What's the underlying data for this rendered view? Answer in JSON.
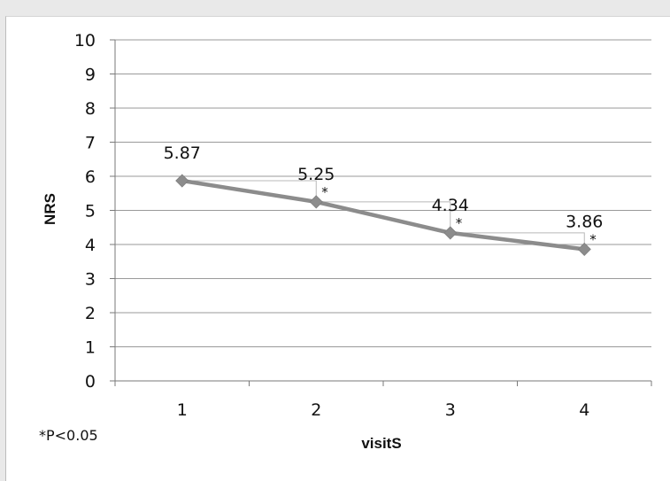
{
  "chart_data": {
    "type": "line",
    "categories": [
      "1",
      "2",
      "3",
      "4"
    ],
    "series": [
      {
        "values": [
          5.87,
          5.25,
          4.34,
          3.86
        ],
        "data_labels": [
          "5.87",
          "5.25",
          "4.34",
          "3.86"
        ],
        "color": "#8c8c8c"
      }
    ],
    "significance_markers": [
      "",
      "*",
      "*",
      "*"
    ],
    "xlabel": "visitS",
    "ylabel": "NRS",
    "ylim": [
      0,
      10
    ],
    "yticks": [
      0,
      1,
      2,
      3,
      4,
      5,
      6,
      7,
      8,
      9,
      10
    ],
    "grid": true,
    "legend": "none",
    "footnote": "*P<0.05",
    "colors": {
      "line": "#8c8c8c",
      "marker": "#8c8c8c",
      "grid": "#9a9a9a",
      "comparison_bracket": "#b9b9b9"
    }
  }
}
